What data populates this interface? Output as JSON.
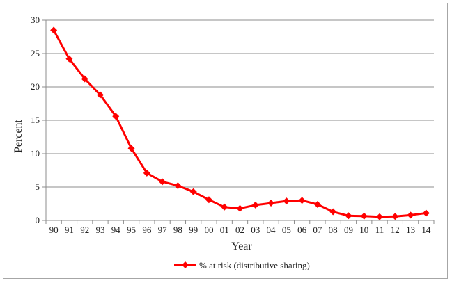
{
  "chart_data": {
    "type": "line",
    "xlabel": "Year",
    "ylabel": "Percent",
    "ylim": [
      0,
      30
    ],
    "yticks": [
      0,
      5,
      10,
      15,
      20,
      25,
      30
    ],
    "grid": true,
    "legend_position": "bottom",
    "categories": [
      "90",
      "91",
      "92",
      "93",
      "94",
      "95",
      "96",
      "97",
      "98",
      "99",
      "00",
      "01",
      "02",
      "03",
      "04",
      "05",
      "06",
      "07",
      "08",
      "09",
      "10",
      "11",
      "12",
      "13",
      "14"
    ],
    "series": [
      {
        "name": "% at risk (distributive sharing)",
        "color": "#ff0000",
        "marker": "diamond",
        "values": [
          28.5,
          24.2,
          21.2,
          18.8,
          15.6,
          10.8,
          7.1,
          5.8,
          5.2,
          4.3,
          3.1,
          2.0,
          1.8,
          2.3,
          2.6,
          2.9,
          3.0,
          2.4,
          1.3,
          0.7,
          0.65,
          0.55,
          0.6,
          0.8,
          1.1
        ]
      }
    ]
  }
}
